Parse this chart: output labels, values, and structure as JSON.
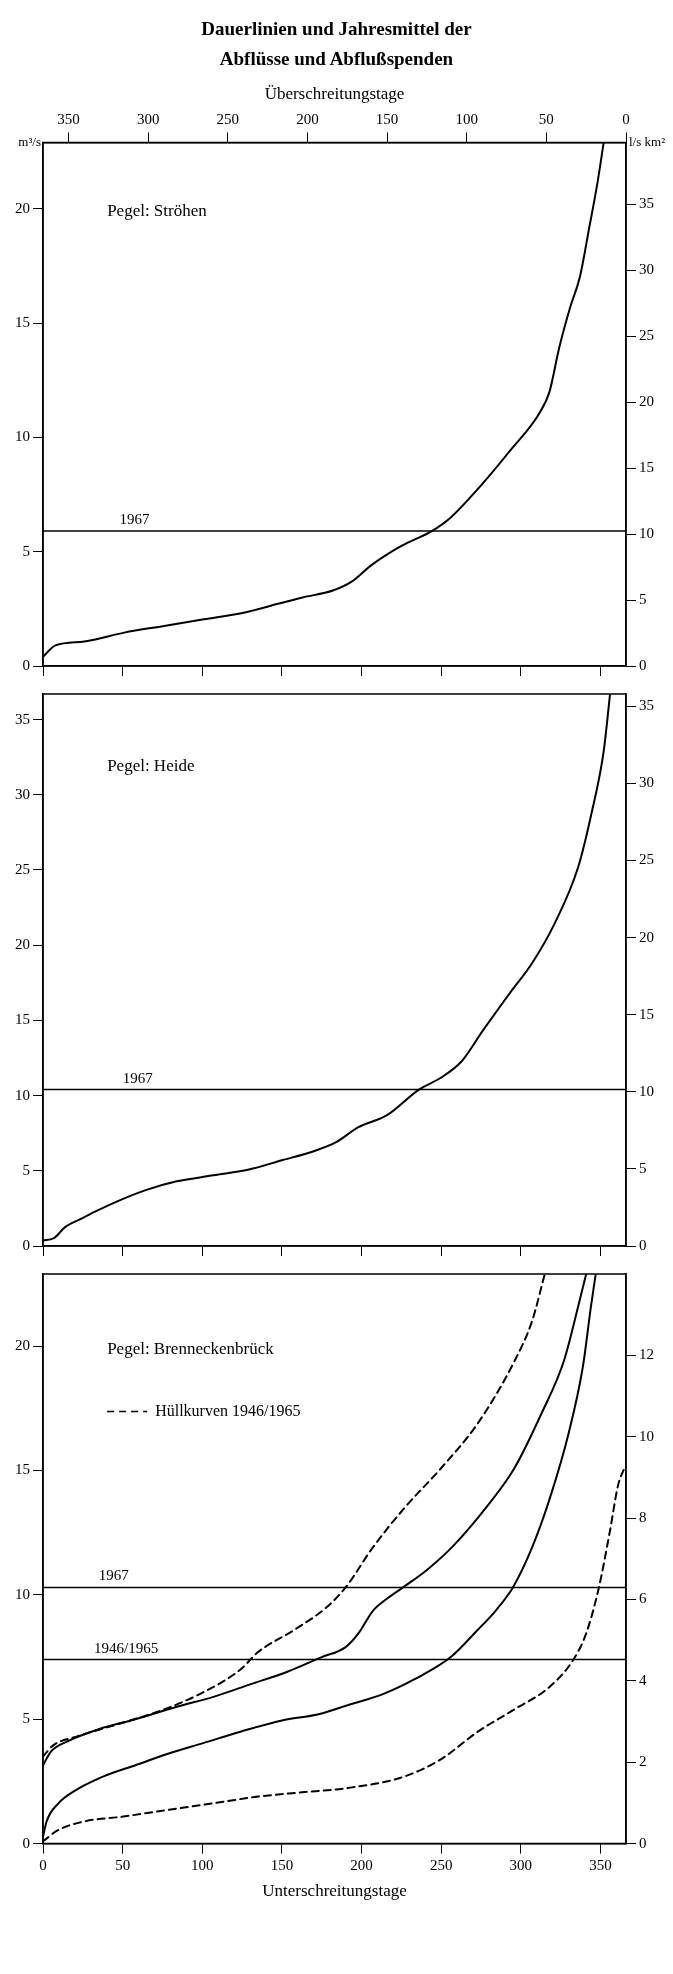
{
  "chart_data": [
    {
      "type": "line",
      "title": "Dauerlinien und Jahresmittel der Abflüsse und Abflußspenden",
      "x2label": "Überschreitungstage",
      "ylabel": "m³/s",
      "y2label": "l/s km²",
      "annotations": [
        "Pegel: Ströhen",
        {
          "text": "1967",
          "x": 48,
          "y": 5.9
        }
      ],
      "xlim": [
        0,
        366
      ],
      "xticks": [
        0,
        50,
        100,
        150,
        200,
        250,
        300,
        350
      ],
      "x2lim": [
        366,
        0
      ],
      "x2ticks": [
        350,
        300,
        250,
        200,
        150,
        100,
        50,
        0
      ],
      "ylim": [
        0,
        22.9
      ],
      "yticks": [
        0,
        5,
        10,
        15,
        20
      ],
      "y2lim": [
        0,
        39.7
      ],
      "y2ticks": [
        0,
        5,
        10,
        15,
        20,
        25,
        30,
        35
      ],
      "tick_labels": "y",
      "grid": false,
      "legend": false,
      "marker": "none",
      "ref_lines": [
        {
          "axis": "y",
          "value": 5.9,
          "color": "#000000"
        }
      ],
      "series": [
        {
          "color": "#000000",
          "line_style": "solid",
          "x": [
            0,
            7.8,
            26,
            51,
            76,
            101,
            126,
            147.5,
            163,
            182,
            194,
            206,
            225,
            244,
            256,
            275,
            293,
            312,
            318,
            324,
            331,
            337,
            343,
            348,
            352
          ],
          "values": [
            0.4,
            0.9,
            1.07,
            1.46,
            1.75,
            2.04,
            2.33,
            2.72,
            3.0,
            3.3,
            3.7,
            4.4,
            5.25,
            5.9,
            6.5,
            7.9,
            9.4,
            11.1,
            12.0,
            13.9,
            15.7,
            17.0,
            19.2,
            21.1,
            22.9
          ]
        }
      ]
    },
    {
      "type": "line",
      "annotations": [
        "Pegel: Heide",
        {
          "text": "1967",
          "x": 50,
          "y": 10.4
        }
      ],
      "xlim": [
        0,
        366
      ],
      "xticks": [
        0,
        50,
        100,
        150,
        200,
        250,
        300,
        350
      ],
      "ylim": [
        0,
        36.7
      ],
      "yticks": [
        0,
        5,
        10,
        15,
        20,
        25,
        30,
        35
      ],
      "y2lim": [
        0,
        35.8
      ],
      "y2ticks": [
        0,
        5,
        10,
        15,
        20,
        25,
        30,
        35
      ],
      "tick_labels": "y",
      "grid": false,
      "legend": false,
      "marker": "none",
      "ref_lines": [
        {
          "axis": "y",
          "value": 10.4,
          "color": "#000000"
        }
      ],
      "series": [
        {
          "color": "#000000",
          "line_style": "solid",
          "x": [
            0,
            6.6,
            13.7,
            23.8,
            32,
            49.5,
            64,
            84,
            107,
            130,
            150,
            170,
            184,
            198,
            216,
            236,
            250,
            263,
            276,
            293,
            307,
            321,
            336,
            344,
            352,
            356
          ],
          "values": [
            0.37,
            0.5,
            1.24,
            1.8,
            2.25,
            3.1,
            3.7,
            4.3,
            4.7,
            5.1,
            5.7,
            6.3,
            6.9,
            7.9,
            8.7,
            10.4,
            11.2,
            12.3,
            14.3,
            16.8,
            18.8,
            21.4,
            25.2,
            28.6,
            32.9,
            36.7
          ]
        }
      ]
    },
    {
      "type": "line",
      "xlabel": "Unterschreitungstage",
      "annotations": [
        "Pegel: Brenneckenbrück",
        {
          "text": "1967",
          "x": 35,
          "y": 10.3
        },
        {
          "text": "1946/1965",
          "x": 32,
          "y": 7.4
        }
      ],
      "xlim": [
        0,
        366
      ],
      "xticks": [
        0,
        50,
        100,
        150,
        200,
        250,
        300,
        350
      ],
      "ylim": [
        0,
        22.9
      ],
      "yticks": [
        0,
        5,
        10,
        15,
        20
      ],
      "y2lim": [
        0,
        14
      ],
      "y2ticks": [
        0,
        2,
        4,
        6,
        8,
        10,
        12
      ],
      "grid": false,
      "legend": "top left",
      "marker": "none",
      "ref_lines": [
        {
          "axis": "y",
          "value": 10.3,
          "color": "#000000"
        },
        {
          "axis": "y",
          "value": 7.4,
          "color": "#000000"
        }
      ],
      "series": [
        {
          "name": "Hüllkurven 1946/1965",
          "color": "#000000",
          "line_style": "dashed",
          "x": [
            0,
            6.6,
            21,
            49.5,
            72,
            98,
            124,
            135,
            158,
            178,
            190,
            207,
            227,
            250,
            273,
            296,
            307,
            315
          ],
          "values": [
            3.5,
            3.96,
            4.3,
            4.85,
            5.3,
            6.0,
            7.0,
            7.7,
            8.6,
            9.5,
            10.3,
            11.9,
            13.5,
            15.1,
            16.9,
            19.4,
            21.0,
            22.9
          ]
        },
        {
          "color": "#000000",
          "line_style": "solid",
          "x": [
            0,
            5,
            15,
            35,
            58,
            84,
            107,
            130,
            153,
            175,
            190,
            198,
            207,
            215,
            226,
            241,
            258,
            278,
            296,
            313,
            327,
            336,
            341
          ],
          "values": [
            3.15,
            3.7,
            4.1,
            4.6,
            5.0,
            5.5,
            5.9,
            6.4,
            6.9,
            7.5,
            7.9,
            8.45,
            9.35,
            9.8,
            10.3,
            11.0,
            12.0,
            13.5,
            15.1,
            17.3,
            19.4,
            21.6,
            22.9
          ]
        },
        {
          "color": "#000000",
          "line_style": "solid",
          "x": [
            0,
            2.3,
            9.4,
            20.9,
            38,
            58,
            78,
            101,
            124,
            150,
            173,
            193,
            213,
            233,
            256,
            273,
            284,
            295,
            307,
            318,
            330,
            339,
            344,
            347
          ],
          "values": [
            0.27,
            0.9,
            1.6,
            2.16,
            2.7,
            3.15,
            3.6,
            4.05,
            4.5,
            4.95,
            5.2,
            5.6,
            6.0,
            6.6,
            7.5,
            8.6,
            9.35,
            10.3,
            11.9,
            13.85,
            16.5,
            19.2,
            21.6,
            22.9
          ]
        },
        {
          "color": "#000000",
          "line_style": "dashed",
          "x": [
            0,
            9.4,
            26.6,
            49.5,
            78,
            107,
            135,
            164,
            193,
            227,
            250,
            273,
            296,
            318,
            333,
            341,
            349,
            356,
            361,
            365
          ],
          "values": [
            0.09,
            0.54,
            0.9,
            1.08,
            1.35,
            1.62,
            1.89,
            2.07,
            2.25,
            2.7,
            3.4,
            4.5,
            5.4,
            6.3,
            7.4,
            8.45,
            10.3,
            12.6,
            14.4,
            15.1
          ]
        }
      ]
    }
  ]
}
